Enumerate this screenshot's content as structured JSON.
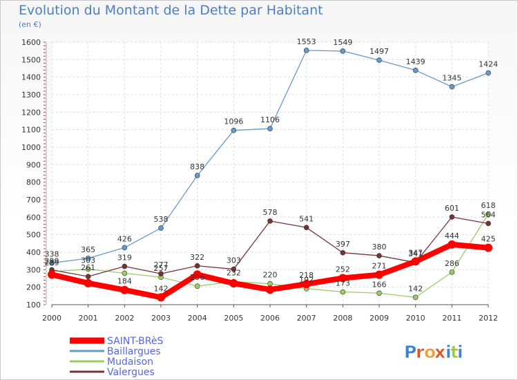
{
  "chart_data": {
    "type": "line",
    "title": "Evolution du Montant de la Dette par Habitant",
    "subtitle": "(en €)",
    "x": [
      "2000",
      "2001",
      "2002",
      "2003",
      "2004",
      "2005",
      "2006",
      "2007",
      "2008",
      "2009",
      "2010",
      "2011",
      "2012"
    ],
    "ylim": [
      100,
      1600
    ],
    "yticks": [
      100,
      200,
      300,
      400,
      500,
      600,
      700,
      800,
      900,
      1000,
      1100,
      1200,
      1300,
      1400,
      1500,
      1600
    ],
    "grid": true,
    "legend_position": "bottom-left",
    "series": [
      {
        "name": "SAINT-BRèS",
        "color": "#ff0000",
        "values": [
          272,
          223,
          184,
          142,
          272,
          222,
          186,
          218,
          252,
          271,
          347,
          444,
          425
        ],
        "labels": [
          "",
          "",
          "184",
          "142",
          "",
          "",
          "",
          "218",
          "252",
          "271",
          "347",
          "444",
          "425"
        ]
      },
      {
        "name": "Baillargues",
        "color": "#6699cc",
        "values": [
          338,
          365,
          426,
          538,
          838,
          1096,
          1106,
          1553,
          1549,
          1497,
          1439,
          1345,
          1424
        ],
        "labels": [
          "338",
          "365",
          "426",
          "538",
          "838",
          "1096",
          "1106",
          "1553",
          "1549",
          "1497",
          "1439",
          "1345",
          "1424"
        ]
      },
      {
        "name": "Mudaison",
        "color": "#99cc66",
        "values": [
          289,
          303,
          280,
          257,
          206,
          232,
          220,
          192,
          173,
          166,
          142,
          286,
          618
        ],
        "labels": [
          "289",
          "303",
          "",
          "257",
          "206",
          "232",
          "220",
          "192",
          "173",
          "166",
          "142",
          "286",
          "618"
        ]
      },
      {
        "name": "Valergues",
        "color": "#773333",
        "values": [
          299,
          261,
          319,
          277,
          322,
          303,
          578,
          541,
          397,
          380,
          341,
          601,
          564
        ],
        "labels": [
          "299",
          "261",
          "319",
          "277",
          "322",
          "303",
          "578",
          "541",
          "397",
          "380",
          "341",
          "601",
          "564"
        ]
      }
    ]
  },
  "logo": {
    "text": "Proxiti",
    "letters": [
      "P",
      "r",
      "o",
      "x",
      "i",
      "t",
      "i"
    ],
    "colors": [
      "#3b82d4",
      "#e8501e",
      "#f0a030",
      "#e8501e",
      "#3b82d4",
      "#9acd32",
      "#3b82d4"
    ]
  }
}
